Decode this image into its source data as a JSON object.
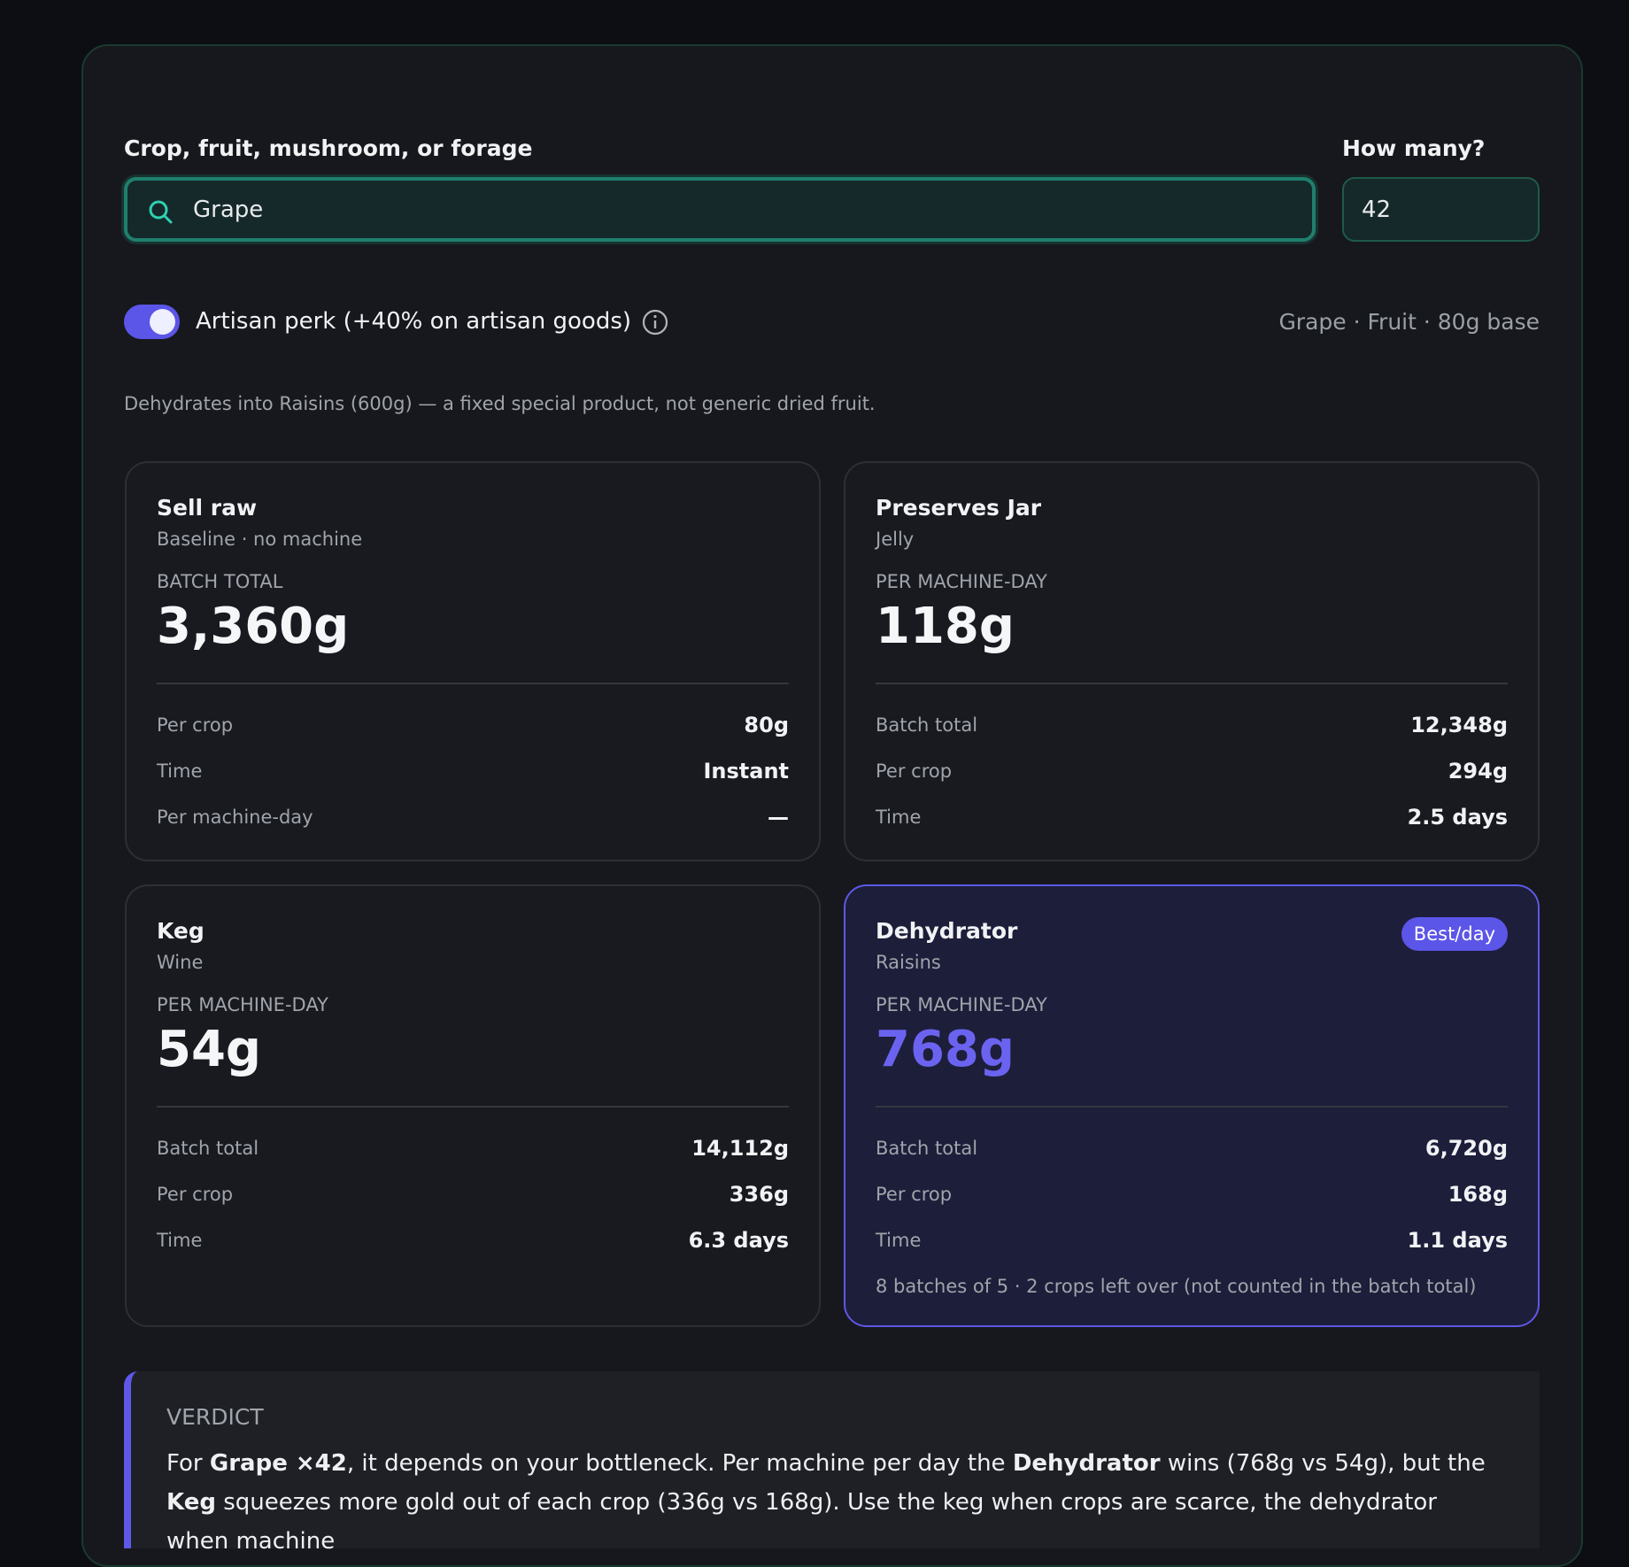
{
  "form": {
    "crop_label": "Crop, fruit, mushroom, or forage",
    "crop_value": "Grape",
    "count_label": "How many?",
    "count_value": "42"
  },
  "perk": {
    "label": "Artisan perk (+40% on artisan goods)",
    "enabled": true
  },
  "item_info": "Grape · Fruit · 80g base",
  "note": "Dehydrates into Raisins (600g) — a fixed special product, not generic dried fruit.",
  "cards": [
    {
      "title": "Sell raw",
      "subtitle": "Baseline · no machine",
      "metric_label": "BATCH TOTAL",
      "metric_value": "3,360g",
      "rows": [
        {
          "label": "Per crop",
          "value": "80g"
        },
        {
          "label": "Time",
          "value": "Instant"
        },
        {
          "label": "Per machine-day",
          "value": "—"
        }
      ]
    },
    {
      "title": "Preserves Jar",
      "subtitle": "Jelly",
      "metric_label": "PER MACHINE-DAY",
      "metric_value": "118g",
      "rows": [
        {
          "label": "Batch total",
          "value": "12,348g"
        },
        {
          "label": "Per crop",
          "value": "294g"
        },
        {
          "label": "Time",
          "value": "2.5 days"
        }
      ]
    },
    {
      "title": "Keg",
      "subtitle": "Wine",
      "metric_label": "PER MACHINE-DAY",
      "metric_value": "54g",
      "rows": [
        {
          "label": "Batch total",
          "value": "14,112g"
        },
        {
          "label": "Per crop",
          "value": "336g"
        },
        {
          "label": "Time",
          "value": "6.3 days"
        }
      ]
    },
    {
      "title": "Dehydrator",
      "subtitle": "Raisins",
      "metric_label": "PER MACHINE-DAY",
      "metric_value": "768g",
      "badge": "Best/day",
      "highlight": true,
      "rows": [
        {
          "label": "Batch total",
          "value": "6,720g"
        },
        {
          "label": "Per crop",
          "value": "168g"
        },
        {
          "label": "Time",
          "value": "1.1 days"
        }
      ],
      "footnote": "8 batches of 5 · 2 crops left over (not counted in the batch total)"
    }
  ],
  "verdict": {
    "heading": "VERDICT",
    "parts": [
      {
        "text": "For ",
        "bold": false
      },
      {
        "text": "Grape ×42",
        "bold": true
      },
      {
        "text": ", it depends on your bottleneck. Per machine per day the ",
        "bold": false
      },
      {
        "text": "Dehydrator",
        "bold": true
      },
      {
        "text": " wins (768g vs 54g), but the ",
        "bold": false
      },
      {
        "text": "Keg",
        "bold": true
      },
      {
        "text": " squeezes more gold out of each crop (336g vs 168g). Use the keg when crops are scarce, the dehydrator when machine",
        "bold": false
      }
    ]
  }
}
